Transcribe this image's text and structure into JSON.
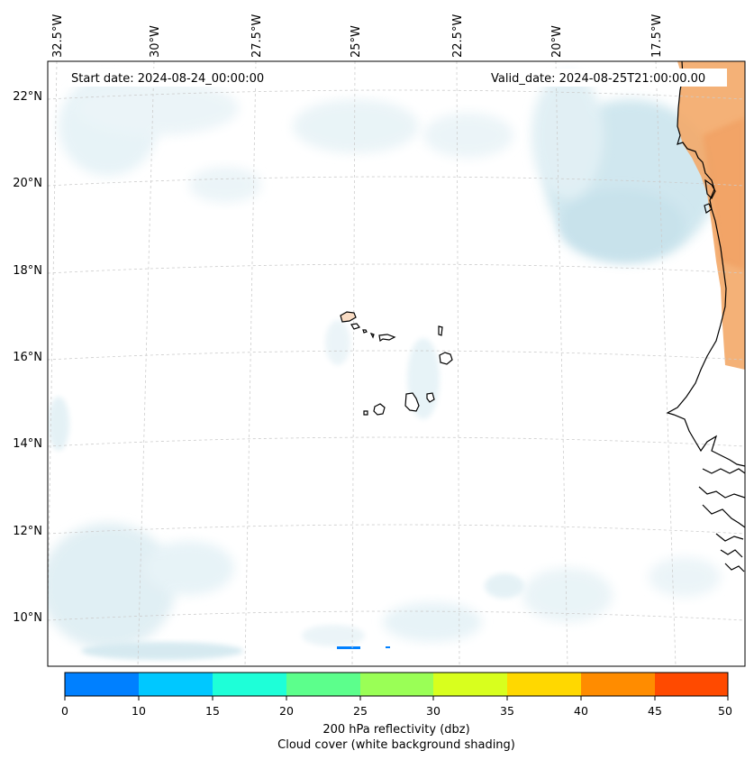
{
  "map": {
    "start_label": "Start date: 2024-08-24_00:00:00",
    "valid_label": "Valid_date: 2024-08-25T21:00:00.00",
    "lon_ticks": [
      "32.5°W",
      "30°W",
      "27.5°W",
      "25°W",
      "22.5°W",
      "20°W",
      "17.5°W"
    ],
    "lat_ticks": [
      "22°N",
      "20°N",
      "18°N",
      "16°N",
      "14°N",
      "12°N",
      "10°N"
    ],
    "colors": {
      "cloud": "#cfe6ee",
      "reflectivity_land": "#f3a868",
      "coast": "#000000",
      "grid": "#cccccc"
    }
  },
  "colorbar": {
    "ticks": [
      "0",
      "10",
      "15",
      "20",
      "25",
      "30",
      "35",
      "40",
      "45",
      "50"
    ],
    "colors": [
      "#0080ff",
      "#00c8ff",
      "#1effd8",
      "#5cff8c",
      "#9aff56",
      "#d8ff1e",
      "#ffd800",
      "#ff8c00",
      "#ff4a00"
    ],
    "title_line1": "200 hPa reflectivity (dbz)",
    "title_line2": "Cloud cover (white background shading)"
  }
}
